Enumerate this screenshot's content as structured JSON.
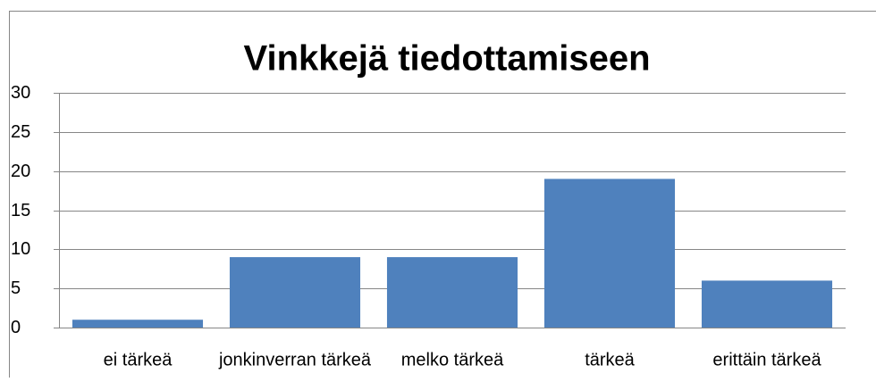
{
  "chart_data": {
    "type": "bar",
    "title": "Vinkkejä tiedottamiseen",
    "categories": [
      "ei tärkeä",
      "jonkinverran tärkeä",
      "melko tärkeä",
      "tärkeä",
      "erittäin tärkeä"
    ],
    "values": [
      1,
      9,
      9,
      19,
      6
    ],
    "color": "#4f81bd",
    "ylim": [
      0,
      30
    ],
    "yticks": [
      0,
      5,
      10,
      15,
      20,
      25,
      30
    ],
    "grid": true
  }
}
